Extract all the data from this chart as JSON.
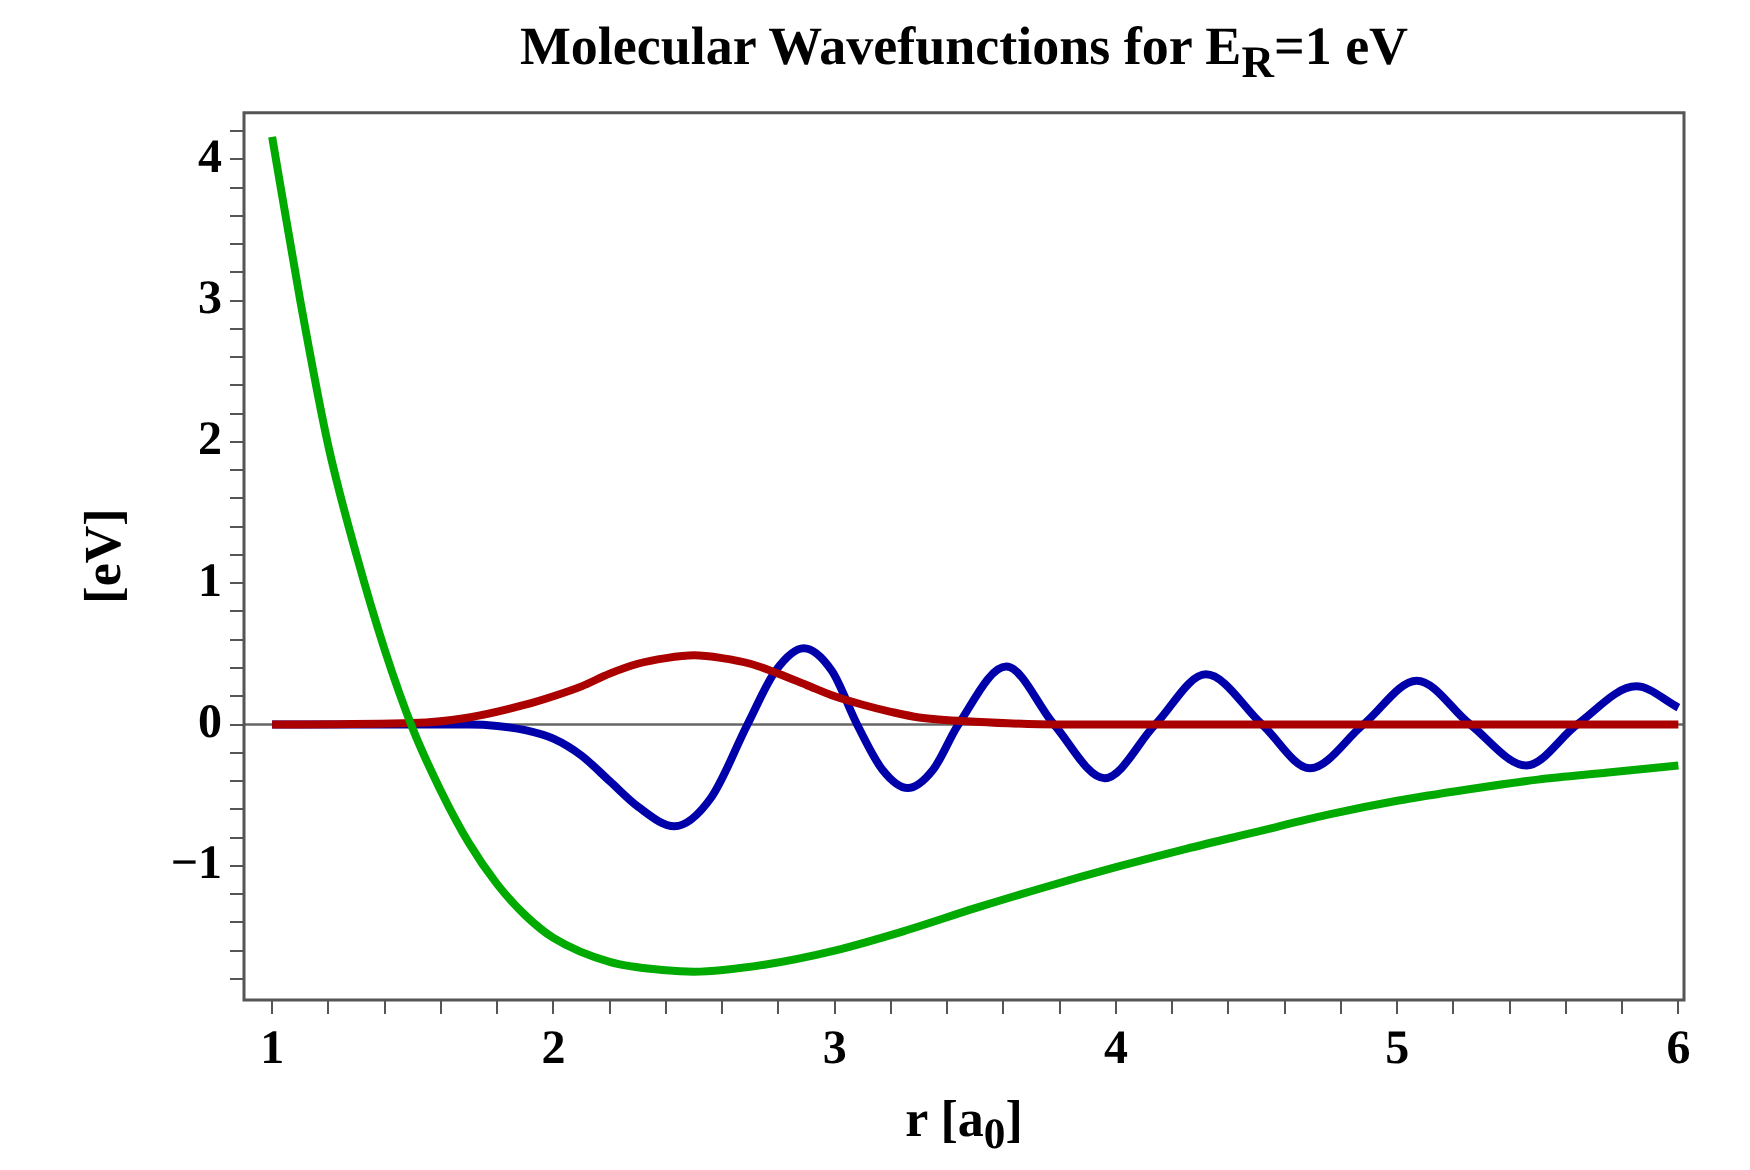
{
  "chart_data": {
    "type": "line",
    "title": "Molecular Wavefunctions for E$_{R}$=1 eV",
    "xlabel": "r [a$_{0}$]",
    "ylabel": "[eV]",
    "xlim": [
      0.9,
      6.02
    ],
    "ylim": [
      -1.95,
      4.33
    ],
    "xticks": [
      1,
      {
        "value": 1.2,
        "label": null
      },
      {
        "value": 1.4,
        "label": null
      },
      {
        "value": 1.6,
        "label": null
      },
      {
        "value": 1.8,
        "label": null
      },
      2,
      {
        "value": 2.2,
        "label": null
      },
      {
        "value": 2.4,
        "label": null
      },
      {
        "value": 2.6,
        "label": null
      },
      {
        "value": 2.8,
        "label": null
      },
      3,
      {
        "value": 3.2,
        "label": null
      },
      {
        "value": 3.4,
        "label": null
      },
      {
        "value": 3.6,
        "label": null
      },
      {
        "value": 3.8,
        "label": null
      },
      4,
      {
        "value": 4.2,
        "label": null
      },
      {
        "value": 4.4,
        "label": null
      },
      {
        "value": 4.6,
        "label": null
      },
      {
        "value": 4.8,
        "label": null
      },
      5,
      {
        "value": 5.2,
        "label": null
      },
      {
        "value": 5.4,
        "label": null
      },
      {
        "value": 5.6,
        "label": null
      },
      {
        "value": 5.8,
        "label": null
      },
      6
    ],
    "yticks": [
      {
        "value": -1.8,
        "label": null
      },
      {
        "value": -1.6,
        "label": null
      },
      {
        "value": -1.4,
        "label": null
      },
      {
        "value": -1.2,
        "label": null
      },
      {
        "value": -1,
        "label": "−1"
      },
      {
        "value": -0.8,
        "label": null
      },
      {
        "value": -0.6,
        "label": null
      },
      {
        "value": -0.4,
        "label": null
      },
      {
        "value": -0.2,
        "label": null
      },
      0,
      {
        "value": 0.2,
        "label": null
      },
      {
        "value": 0.4,
        "label": null
      },
      {
        "value": 0.6,
        "label": null
      },
      {
        "value": 0.8,
        "label": null
      },
      1,
      {
        "value": 1.2,
        "label": null
      },
      {
        "value": 1.4,
        "label": null
      },
      {
        "value": 1.6,
        "label": null
      },
      {
        "value": 1.8,
        "label": null
      },
      2,
      {
        "value": 2.2,
        "label": null
      },
      {
        "value": 2.4,
        "label": null
      },
      {
        "value": 2.6,
        "label": null
      },
      {
        "value": 2.8,
        "label": null
      },
      3,
      {
        "value": 3.2,
        "label": null
      },
      {
        "value": 3.4,
        "label": null
      },
      {
        "value": 3.6,
        "label": null
      },
      {
        "value": 3.8,
        "label": null
      },
      4,
      {
        "value": 4.2,
        "label": null
      }
    ],
    "grid": false,
    "legend": false,
    "ref_lines": [
      {
        "axis": "y",
        "value": 0,
        "color": "#666666"
      }
    ],
    "series": [
      {
        "color": "#00aa00",
        "x": [
          1,
          1.1,
          1.2,
          1.3,
          1.4,
          1.5,
          1.6,
          1.7,
          1.8,
          1.9,
          2.0,
          2.2,
          2.4,
          2.5,
          2.75,
          3.0,
          3.25,
          3.5,
          3.75,
          4.0,
          4.25,
          4.5,
          4.75,
          5.0,
          5.25,
          5.5,
          5.75,
          6.0
        ],
        "values": [
          4.16,
          3.0,
          1.97,
          1.2,
          0.53,
          -0.03,
          -0.47,
          -0.84,
          -1.13,
          -1.35,
          -1.51,
          -1.68,
          -1.74,
          -1.75,
          -1.7,
          -1.6,
          -1.46,
          -1.3,
          -1.15,
          -1.01,
          -0.88,
          -0.76,
          -0.64,
          -0.54,
          -0.46,
          -0.39,
          -0.34,
          -0.29
        ]
      },
      {
        "color": "#aa0000",
        "x": [
          1,
          1.5,
          1.7,
          1.9,
          2.0,
          2.1,
          2.2,
          2.3,
          2.4,
          2.5,
          2.6,
          2.7,
          2.8,
          2.9,
          3.0,
          3.1,
          3.2,
          3.3,
          3.5,
          3.8,
          6.0
        ],
        "values": [
          0,
          0.01,
          0.05,
          0.14,
          0.2,
          0.27,
          0.36,
          0.43,
          0.47,
          0.49,
          0.47,
          0.43,
          0.36,
          0.28,
          0.2,
          0.14,
          0.09,
          0.05,
          0.02,
          0,
          0
        ]
      },
      {
        "color": "#0000aa",
        "x": [
          1,
          1.7,
          1.8,
          1.9,
          2.0,
          2.1,
          2.2,
          2.3,
          2.43,
          2.56,
          2.69,
          2.79,
          2.89,
          2.99,
          3.08,
          3.17,
          3.26,
          3.35,
          3.44,
          3.61,
          3.78,
          3.96,
          4.14,
          4.32,
          4.52,
          4.69,
          4.88,
          5.07,
          5.26,
          5.46,
          5.64,
          5.85,
          6.0
        ],
        "values": [
          0,
          0,
          -0.01,
          -0.04,
          -0.1,
          -0.22,
          -0.4,
          -0.58,
          -0.72,
          -0.52,
          0,
          0.38,
          0.54,
          0.38,
          0,
          -0.32,
          -0.45,
          -0.32,
          0,
          0.41,
          0,
          -0.38,
          0,
          0.355,
          0,
          -0.31,
          0,
          0.31,
          0,
          -0.29,
          0,
          0.27,
          0.12
        ]
      }
    ]
  }
}
